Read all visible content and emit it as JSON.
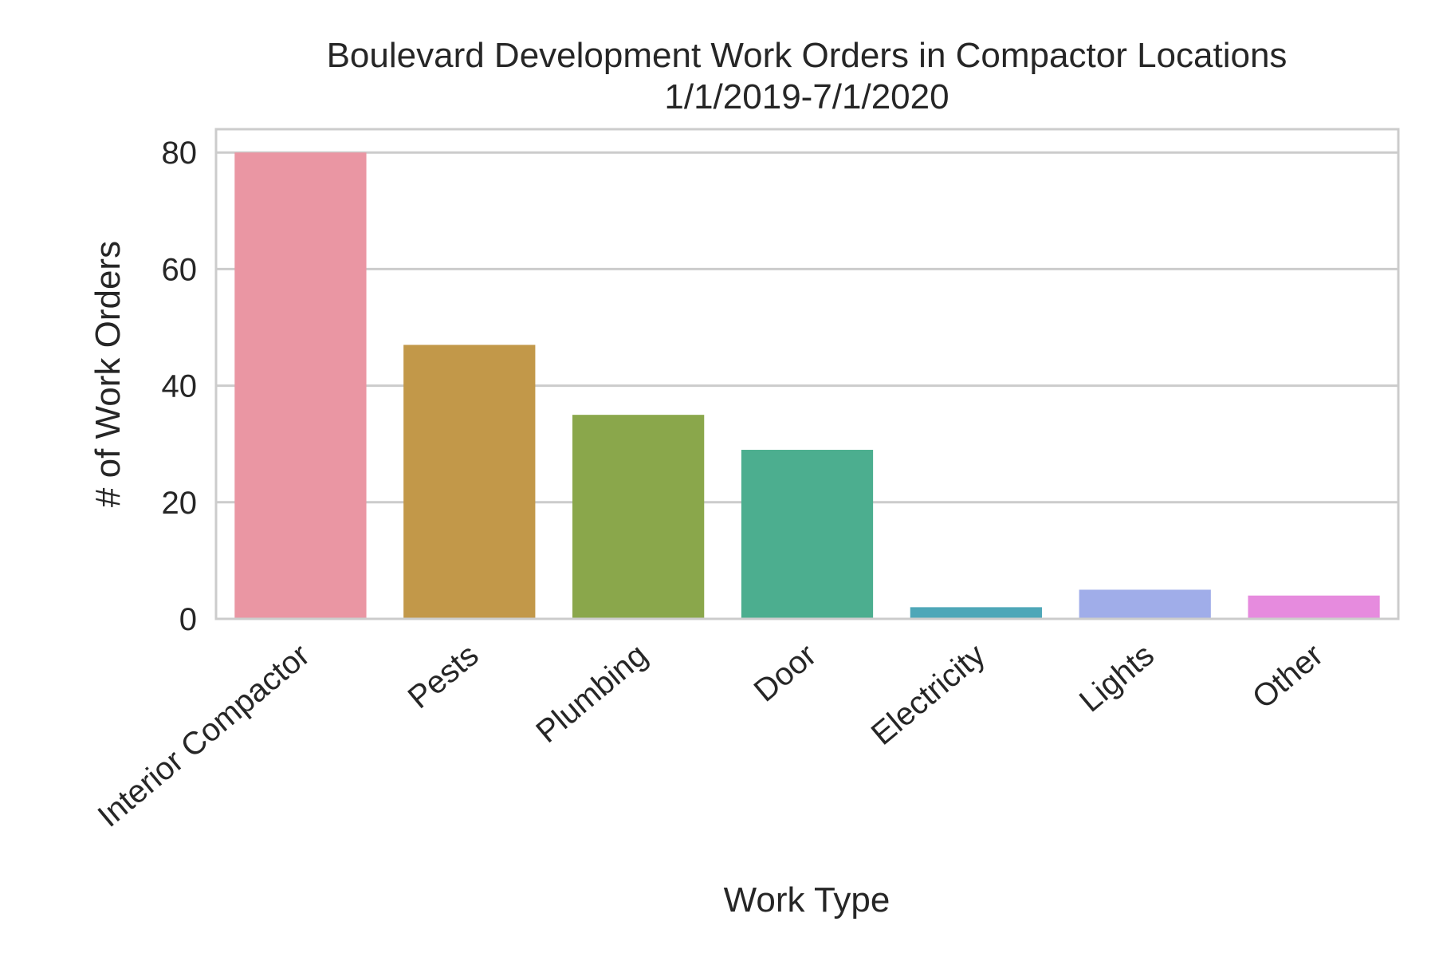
{
  "chart_data": {
    "type": "bar",
    "title_line1": "Boulevard Development Work Orders in Compactor Locations",
    "title_line2": "1/1/2019-7/1/2020",
    "xlabel": "Work Type",
    "ylabel": "# of Work Orders",
    "categories": [
      "Interior Compactor",
      "Pests",
      "Plumbing",
      "Door",
      "Electricity",
      "Lights",
      "Other"
    ],
    "values": [
      80,
      47,
      35,
      29,
      2,
      5,
      4
    ],
    "colors": [
      "#ea96a3",
      "#c29849",
      "#8aa74b",
      "#4cae8f",
      "#4ea7b8",
      "#a0ade9",
      "#e68bde"
    ],
    "ylim": [
      0,
      84
    ],
    "yticks": [
      0,
      20,
      40,
      60,
      80
    ],
    "grid": true,
    "legend": "none"
  }
}
